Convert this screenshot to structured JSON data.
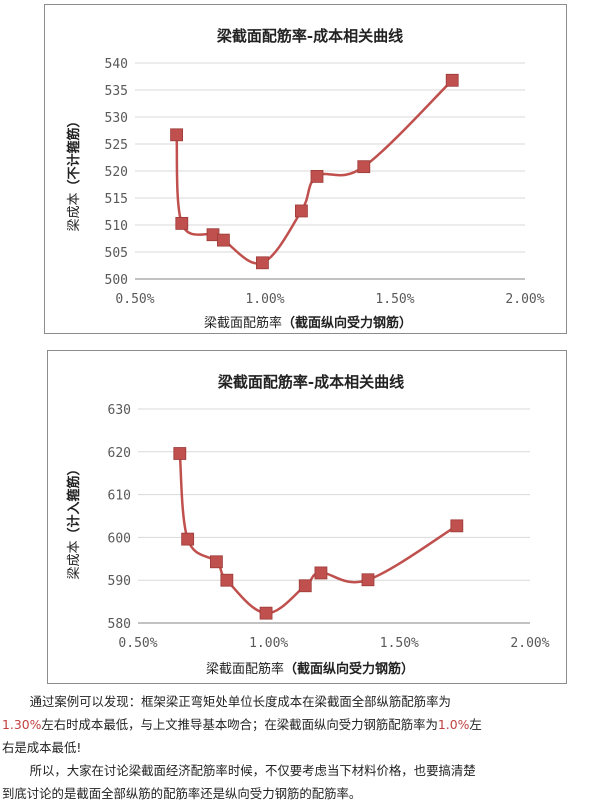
{
  "charts": [
    {
      "title": "梁截面配筋率-成本相关曲线",
      "xlabel_plain": "梁截面配筋率",
      "xlabel_bold": "（截面纵向受力钢筋）",
      "ylabel_plain": "梁成本",
      "ylabel_bold": "（不计箍筋）"
    },
    {
      "title": "梁截面配筋率-成本相关曲线",
      "xlabel_plain": "梁截面配筋率",
      "xlabel_bold": "（截面纵向受力钢筋）",
      "ylabel_plain": "梁成本",
      "ylabel_bold": "（计入箍筋）"
    }
  ],
  "chart_data": [
    {
      "type": "line",
      "title": "梁截面配筋率-成本相关曲线",
      "xlabel": "梁截面配筋率（截面纵向受力钢筋）",
      "ylabel": "梁成本（不计箍筋）",
      "xlim": [
        0.005,
        0.02
      ],
      "ylim": [
        500,
        540
      ],
      "xticks": [
        "0.50%",
        "1.00%",
        "1.50%",
        "2.00%"
      ],
      "yticks": [
        "500",
        "505",
        "510",
        "515",
        "520",
        "525",
        "530",
        "535",
        "540"
      ],
      "x": [
        0.0066,
        0.0068,
        0.008,
        0.0084,
        0.0099,
        0.0114,
        0.012,
        0.0138,
        0.0172
      ],
      "y": [
        526.7,
        510.3,
        508.2,
        507.2,
        503.0,
        512.6,
        519.0,
        520.8,
        536.8
      ],
      "line_color": "#c0504d",
      "marker": "square",
      "smooth": true
    },
    {
      "type": "line",
      "title": "梁截面配筋率-成本相关曲线",
      "xlabel": "梁截面配筋率（截面纵向受力钢筋）",
      "ylabel": "梁成本（计入箍筋）",
      "xlim": [
        0.005,
        0.02
      ],
      "ylim": [
        580,
        630
      ],
      "xticks": [
        "0.50%",
        "1.00%",
        "1.50%",
        "2.00%"
      ],
      "yticks": [
        "580",
        "590",
        "600",
        "610",
        "620",
        "630"
      ],
      "x": [
        0.0066,
        0.0069,
        0.008,
        0.0084,
        0.0099,
        0.0114,
        0.012,
        0.0138,
        0.0172
      ],
      "y": [
        619.6,
        599.6,
        594.3,
        590.0,
        582.3,
        588.7,
        591.7,
        590.1,
        602.7
      ],
      "line_color": "#c0504d",
      "marker": "square",
      "smooth": true
    }
  ],
  "paragraph": {
    "line1": "通过案例可以发现：框架梁正弯矩处单位长度成本在梁截面全部纵筋配筋率为",
    "line2_pct1": "1.30%",
    "line2_mid": "左右时成本最低，与上文推导基本吻合；在梁截面纵向受力钢筋配筋率为",
    "line2_pct2": "1.0%",
    "line2_end": "左",
    "line3": "右是成本最低!",
    "line4": "所以，大家在讨论梁截面经济配筋率时候，不仅要考虑当下材料价格，也要搞清楚",
    "line5": "到底讨论的是截面全部纵筋的配筋率还是纵向受力钢筋的配筋率。"
  },
  "colors": {
    "series": "#c0504d",
    "grid": "#d9d9d9",
    "axis": "#868686"
  }
}
